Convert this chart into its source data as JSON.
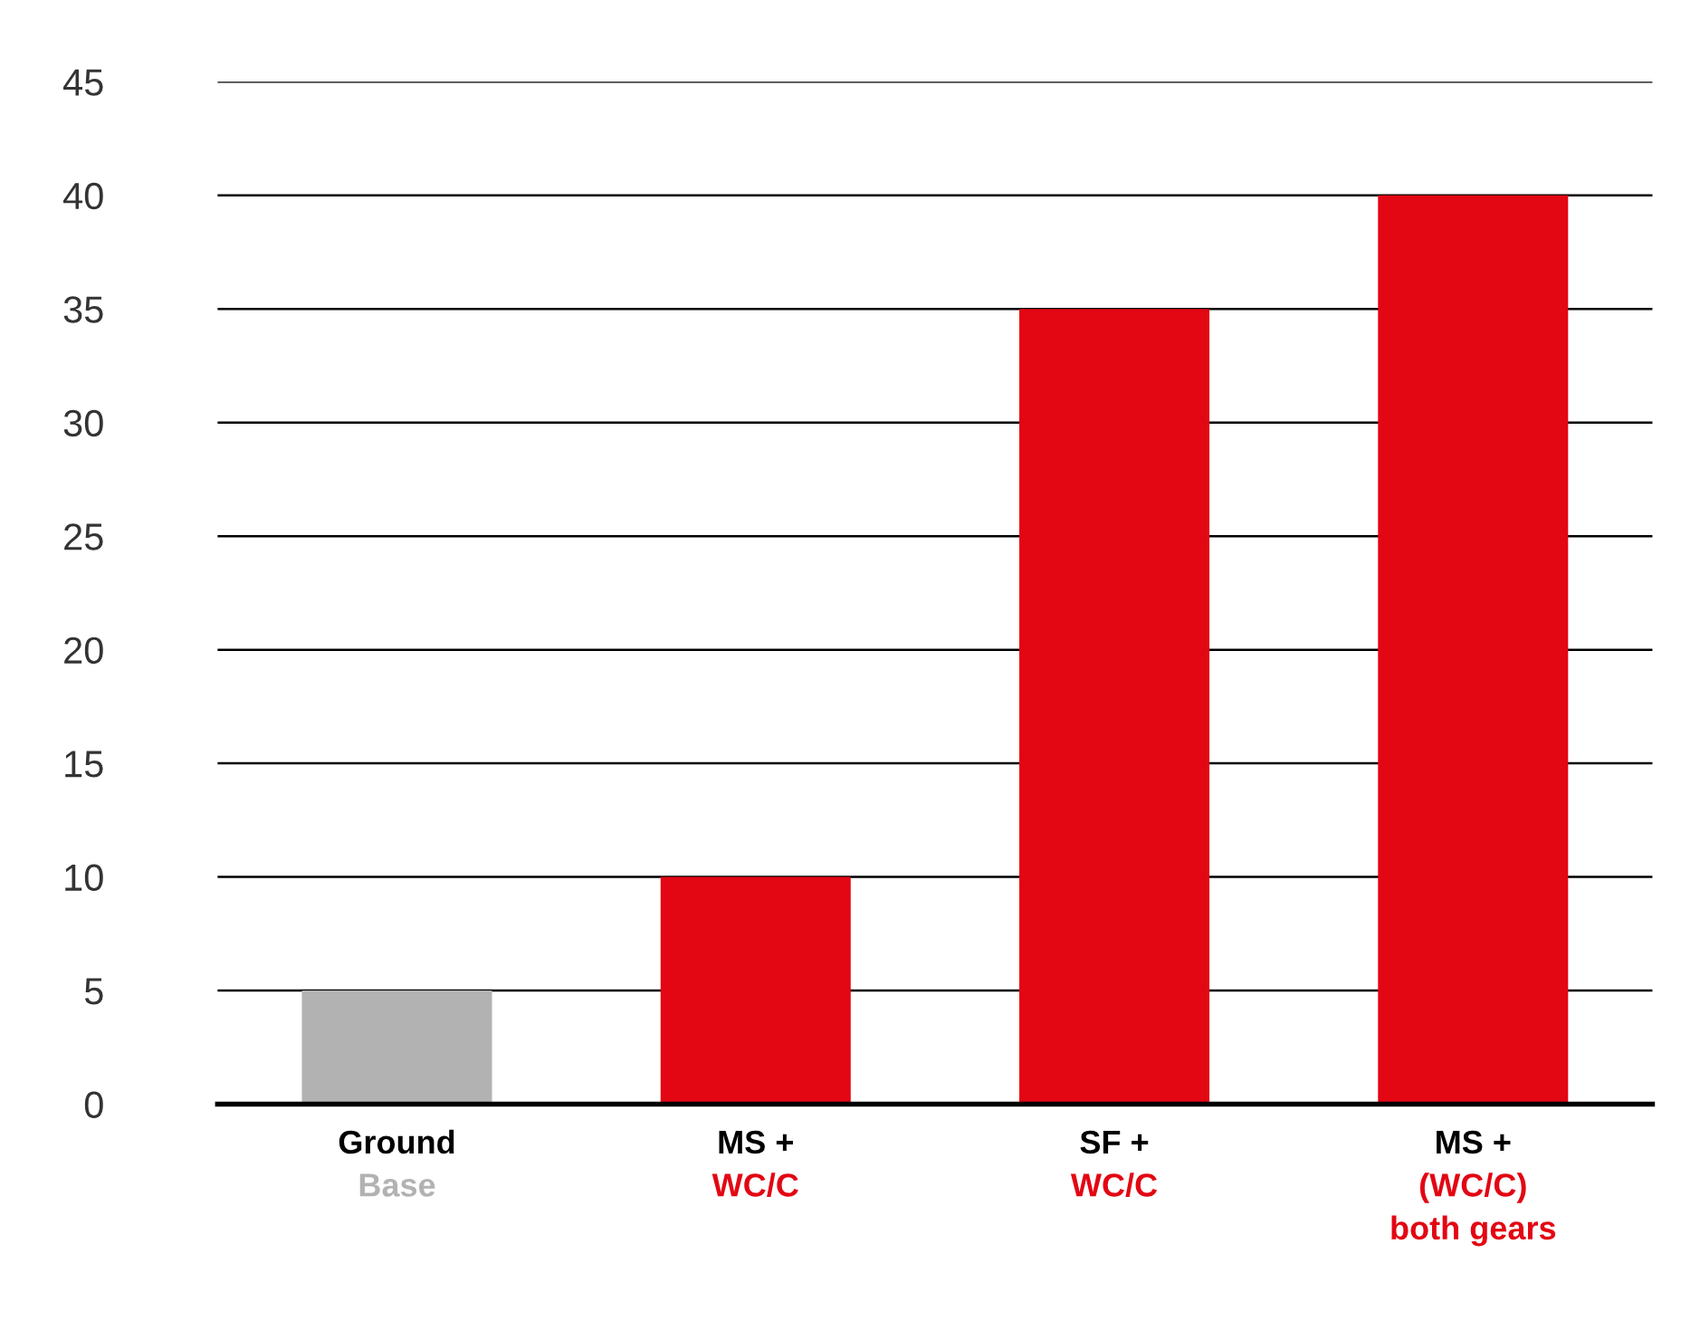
{
  "chart_data": {
    "type": "bar",
    "categories": [
      "Ground\nBase",
      "MS +\nWC/C",
      "SF +\nWC/C",
      "MS +\n(WC/C)\nboth gears"
    ],
    "values": [
      5,
      10,
      35,
      40
    ],
    "colors": [
      "#b2b2b2",
      "#e30613",
      "#e30613",
      "#e30613"
    ],
    "ylim": [
      0,
      45
    ],
    "yticks": [
      0,
      5,
      10,
      15,
      20,
      25,
      30,
      35,
      40,
      45
    ],
    "grid": "y",
    "legend": false
  }
}
